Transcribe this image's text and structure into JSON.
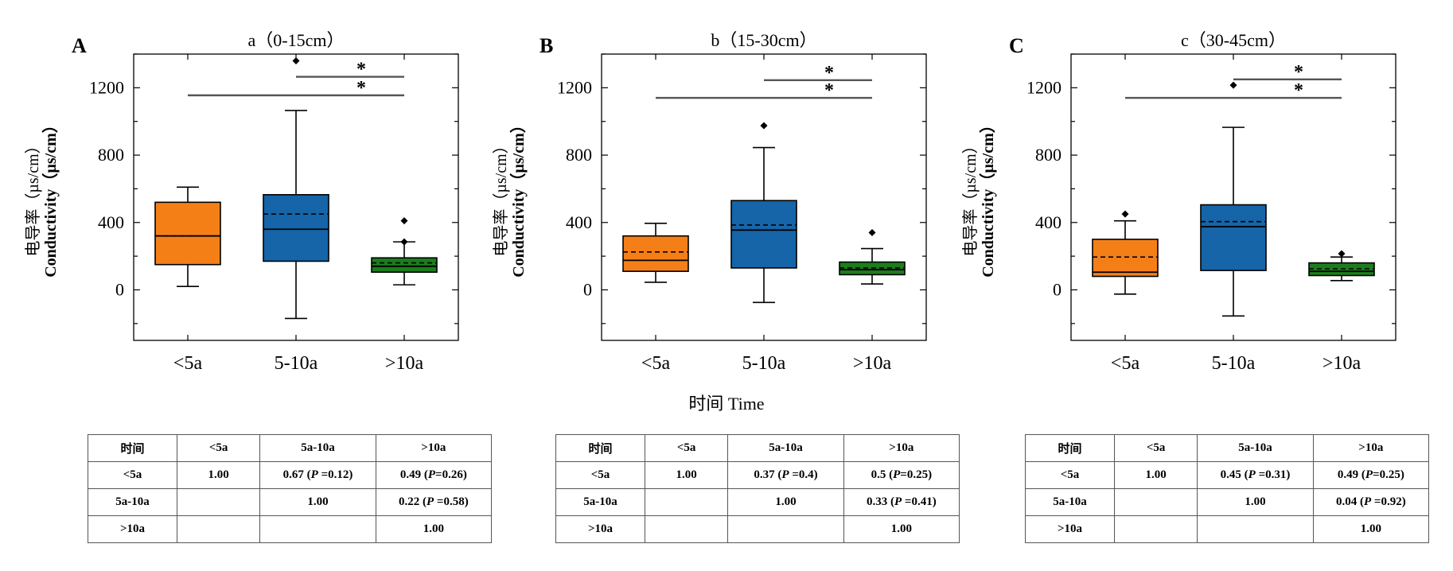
{
  "x_axis_common_label": "时间 Time",
  "panels": [
    {
      "letter": "A",
      "title": "a（0-15cm）",
      "ylabel_cn": "电导率（µs/cm）",
      "ylabel_en": "Conductivity（µs/cm）",
      "sig_marks": [
        "*",
        "*"
      ],
      "matrix": {
        "header": [
          "时间",
          "<5a",
          "5a-10a",
          ">10a"
        ],
        "rows": [
          [
            "<5a",
            "1.00",
            "0.67 (P =0.12)",
            "0.49 (P=0.26)"
          ],
          [
            "5a-10a",
            "",
            "1.00",
            "0.22 (P =0.58)"
          ],
          [
            ">10a",
            "",
            "",
            "1.00"
          ]
        ]
      }
    },
    {
      "letter": "B",
      "title": "b（15-30cm）",
      "ylabel_cn": "电导率（µs/cm）",
      "ylabel_en": "Conductivity（µs/cm）",
      "sig_marks": [
        "*",
        "*"
      ],
      "matrix": {
        "header": [
          "时间",
          "<5a",
          "5a-10a",
          ">10a"
        ],
        "rows": [
          [
            "<5a",
            "1.00",
            "0.37 (P =0.4)",
            "0.5 (P=0.25)"
          ],
          [
            "5a-10a",
            "",
            "1.00",
            "0.33 (P =0.41)"
          ],
          [
            ">10a",
            "",
            "",
            "1.00"
          ]
        ]
      }
    },
    {
      "letter": "C",
      "title": "c（30-45cm）",
      "ylabel_cn": "电导率（µs/cm）",
      "ylabel_en": "Conductivity（µs/cm）",
      "sig_marks": [
        "*",
        "*"
      ],
      "matrix": {
        "header": [
          "时间",
          "<5a",
          "5a-10a",
          ">10a"
        ],
        "rows": [
          [
            "<5a",
            "1.00",
            "0.45 (P =0.31)",
            "0.49 (P=0.25)"
          ],
          [
            "5a-10a",
            "",
            "1.00",
            "0.04 (P =0.92)"
          ],
          [
            ">10a",
            "",
            "",
            "1.00"
          ]
        ]
      }
    }
  ],
  "chart_data": [
    {
      "type": "box",
      "title": "a（0-15cm）",
      "xlabel": "时间 Time",
      "ylabel": "电导率 Conductivity（µs/cm）",
      "ylim": [
        -300,
        1400
      ],
      "yticks": [
        0,
        400,
        800,
        1200
      ],
      "categories": [
        "<5a",
        "5-10a",
        ">10a"
      ],
      "colors": [
        "#f57f17",
        "#1565a8",
        "#1b7d1b"
      ],
      "boxes": [
        {
          "whisker_low": 20,
          "q1": 150,
          "median": 320,
          "mean": 320,
          "q3": 520,
          "whisker_high": 610,
          "outliers": []
        },
        {
          "whisker_low": -170,
          "q1": 170,
          "median": 360,
          "mean": 450,
          "q3": 565,
          "whisker_high": 1065,
          "outliers": [
            1360
          ]
        },
        {
          "whisker_low": 30,
          "q1": 105,
          "median": 140,
          "mean": 160,
          "q3": 190,
          "whisker_high": 285,
          "outliers": [
            410,
            285
          ]
        }
      ],
      "significance": [
        {
          "from": ">10a",
          "to": "5-10a",
          "y": 1265,
          "mark": "*"
        },
        {
          "from": ">10a",
          "to": "<5a",
          "y": 1155,
          "mark": "*"
        }
      ]
    },
    {
      "type": "box",
      "title": "b（15-30cm）",
      "xlabel": "时间 Time",
      "ylabel": "电导率 Conductivity（µs/cm）",
      "ylim": [
        -300,
        1400
      ],
      "yticks": [
        0,
        400,
        800,
        1200
      ],
      "categories": [
        "<5a",
        "5-10a",
        ">10a"
      ],
      "colors": [
        "#f57f17",
        "#1565a8",
        "#1b7d1b"
      ],
      "boxes": [
        {
          "whisker_low": 45,
          "q1": 110,
          "median": 175,
          "mean": 225,
          "q3": 320,
          "whisker_high": 395,
          "outliers": []
        },
        {
          "whisker_low": -75,
          "q1": 130,
          "median": 355,
          "mean": 385,
          "q3": 530,
          "whisker_high": 845,
          "outliers": [
            975
          ]
        },
        {
          "whisker_low": 35,
          "q1": 90,
          "median": 120,
          "mean": 130,
          "q3": 165,
          "whisker_high": 245,
          "outliers": [
            340
          ]
        }
      ],
      "significance": [
        {
          "from": ">10a",
          "to": "5-10a",
          "y": 1245,
          "mark": "*"
        },
        {
          "from": ">10a",
          "to": "<5a",
          "y": 1140,
          "mark": "*"
        }
      ]
    },
    {
      "type": "box",
      "title": "c（30-45cm）",
      "xlabel": "时间 Time",
      "ylabel": "电导率 Conductivity（µs/cm）",
      "ylim": [
        -300,
        1400
      ],
      "yticks": [
        0,
        400,
        800,
        1200
      ],
      "categories": [
        "<5a",
        "5-10a",
        ">10a"
      ],
      "colors": [
        "#f57f17",
        "#1565a8",
        "#1b7d1b"
      ],
      "boxes": [
        {
          "whisker_low": -25,
          "q1": 80,
          "median": 105,
          "mean": 195,
          "q3": 300,
          "whisker_high": 410,
          "outliers": [
            450
          ]
        },
        {
          "whisker_low": -155,
          "q1": 115,
          "median": 375,
          "mean": 405,
          "q3": 505,
          "whisker_high": 965,
          "outliers": [
            1215
          ]
        },
        {
          "whisker_low": 55,
          "q1": 85,
          "median": 110,
          "mean": 125,
          "q3": 160,
          "whisker_high": 195,
          "outliers": [
            215
          ]
        }
      ],
      "significance": [
        {
          "from": ">10a",
          "to": "5-10a",
          "y": 1250,
          "mark": "*"
        },
        {
          "from": ">10a",
          "to": "<5a",
          "y": 1140,
          "mark": "*"
        }
      ]
    }
  ]
}
